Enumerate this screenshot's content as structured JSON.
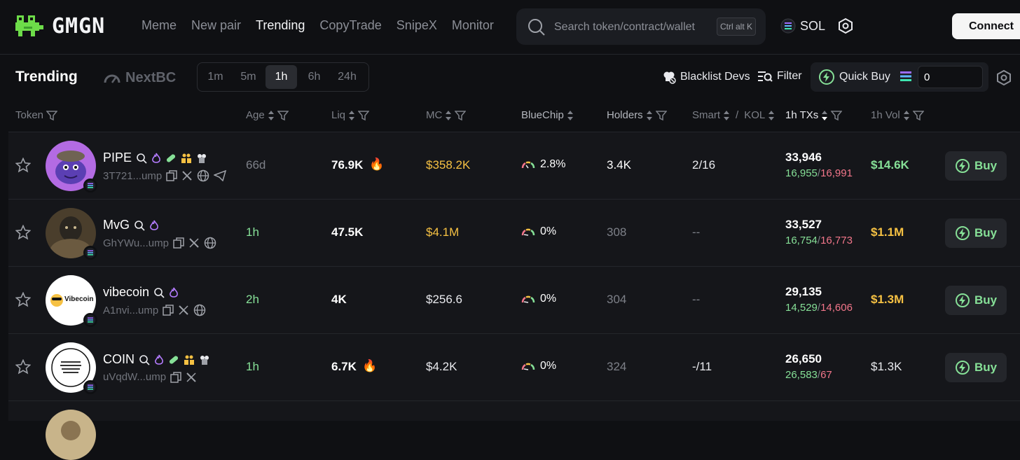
{
  "brand": {
    "name": "GMGN"
  },
  "nav": [
    "Meme",
    "New pair",
    "Trending",
    "CopyTrade",
    "SnipeX",
    "Monitor"
  ],
  "search": {
    "placeholder": "Search token/contract/wallet",
    "shortcut": "Ctrl alt K"
  },
  "chain": {
    "label": "SOL"
  },
  "connect_label": "Connect",
  "sub": {
    "title": "Trending",
    "nextbc": "NextBC",
    "timeframes": [
      "1m",
      "5m",
      "1h",
      "6h",
      "24h"
    ],
    "selected_timeframe": "1h",
    "blacklist": "Blacklist Devs",
    "filter": "Filter",
    "quickbuy": "Quick Buy",
    "quickbuy_amount": "0"
  },
  "columns": {
    "token": "Token",
    "age": "Age",
    "liq": "Liq",
    "mc": "MC",
    "bluechip": "BlueChip",
    "holders": "Holders",
    "smart": "Smart",
    "slash": "/",
    "kol": "KOL",
    "txs": "1h TXs",
    "vol": "1h Vol"
  },
  "colors": {
    "green": "#86e097",
    "yellow": "#f6c143",
    "red": "#f2768a",
    "bg": "#0f1013"
  },
  "rows": [
    {
      "name": "PIPE",
      "addr": "3T721...ump",
      "age": "66d",
      "liq": "76.9K",
      "mc": "$358.2K",
      "bluechip": "2.8%",
      "holders": "3.4K",
      "smartkol": "2/16",
      "txs": "33,946",
      "buys": "16,955",
      "sells": "16,991",
      "vol": "$14.6K",
      "buy": "Buy"
    },
    {
      "name": "MvG",
      "addr": "GhYWu...ump",
      "age": "1h",
      "liq": "47.5K",
      "mc": "$4.1M",
      "bluechip": "0%",
      "holders": "308",
      "smartkol": "--",
      "txs": "33,527",
      "buys": "16,754",
      "sells": "16,773",
      "vol": "$1.1M",
      "buy": "Buy"
    },
    {
      "name": "vibecoin",
      "addr": "A1nvi...ump",
      "age": "2h",
      "liq": "4K",
      "mc": "$256.6",
      "bluechip": "0%",
      "holders": "304",
      "smartkol": "--",
      "txs": "29,135",
      "buys": "14,529",
      "sells": "14,606",
      "vol": "$1.3M",
      "buy": "Buy",
      "avatar_text": "Vibecoin"
    },
    {
      "name": "COIN",
      "addr": "uVqdW...ump",
      "age": "1h",
      "liq": "6.7K",
      "mc": "$4.2K",
      "bluechip": "0%",
      "holders": "324",
      "smartkol": "-/11",
      "txs": "26,650",
      "buys": "26,583",
      "sells": "67",
      "vol": "$1.3K",
      "buy": "Buy"
    }
  ]
}
